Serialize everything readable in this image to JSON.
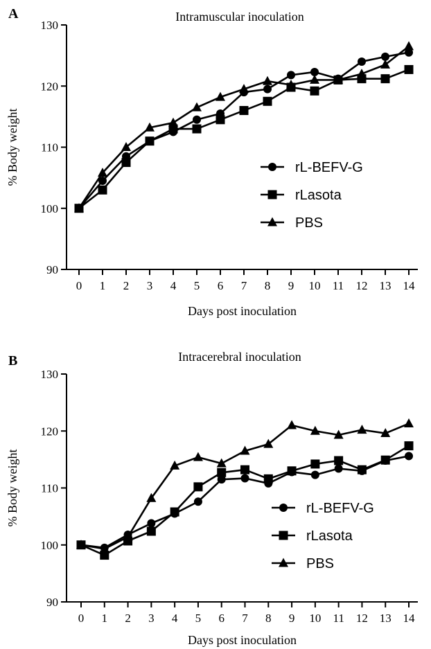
{
  "chart_data": [
    {
      "panel": "A",
      "type": "line",
      "title": "Intramuscular inoculation",
      "xlabel": "Days post inoculation",
      "ylabel": "% Body weight",
      "x": [
        0,
        1,
        2,
        3,
        4,
        5,
        6,
        7,
        8,
        9,
        10,
        11,
        12,
        13,
        14
      ],
      "xlim": [
        0,
        14
      ],
      "ylim": [
        90,
        130
      ],
      "yticks": [
        90,
        100,
        110,
        120,
        130
      ],
      "legend_position": "center-right",
      "series": [
        {
          "name": "rL-BEFV-G",
          "marker": "circle",
          "values": [
            100,
            104.5,
            108.5,
            111.0,
            112.5,
            114.5,
            115.5,
            119.0,
            119.5,
            121.8,
            122.3,
            121.2,
            124.0,
            124.8,
            125.5
          ]
        },
        {
          "name": "rLasota",
          "marker": "square",
          "values": [
            100,
            103.0,
            107.5,
            111.0,
            113.0,
            113.0,
            114.5,
            116.0,
            117.5,
            119.8,
            119.2,
            121.0,
            121.2,
            121.2,
            122.7
          ]
        },
        {
          "name": "PBS",
          "marker": "triangle",
          "values": [
            100,
            105.8,
            110.0,
            113.2,
            114.0,
            116.5,
            118.2,
            119.5,
            120.8,
            120.2,
            121.0,
            121.0,
            122.0,
            123.5,
            126.5
          ]
        }
      ]
    },
    {
      "panel": "B",
      "type": "line",
      "title": "Intracerebral inoculation",
      "xlabel": "Days post inoculation",
      "ylabel": "% Body weight",
      "x": [
        0,
        1,
        2,
        3,
        4,
        5,
        6,
        7,
        8,
        9,
        10,
        11,
        12,
        13,
        14
      ],
      "xlim": [
        0,
        14
      ],
      "ylim": [
        90,
        130
      ],
      "yticks": [
        90,
        100,
        110,
        120,
        130
      ],
      "legend_position": "lower-right",
      "series": [
        {
          "name": "rL-BEFV-G",
          "marker": "circle",
          "values": [
            100,
            99.5,
            101.8,
            103.8,
            105.5,
            107.6,
            111.5,
            111.7,
            110.8,
            112.8,
            112.3,
            113.4,
            113.0,
            114.8,
            115.6
          ]
        },
        {
          "name": "rLasota",
          "marker": "square",
          "values": [
            100,
            98.2,
            100.7,
            102.4,
            105.8,
            110.2,
            112.7,
            113.2,
            111.6,
            113.0,
            114.2,
            114.8,
            113.2,
            114.9,
            117.4
          ]
        },
        {
          "name": "PBS",
          "marker": "triangle",
          "values": [
            100,
            99.3,
            101.4,
            108.2,
            113.9,
            115.4,
            114.3,
            116.5,
            117.7,
            121.0,
            120.0,
            119.3,
            120.2,
            119.6,
            121.3
          ]
        }
      ]
    }
  ]
}
